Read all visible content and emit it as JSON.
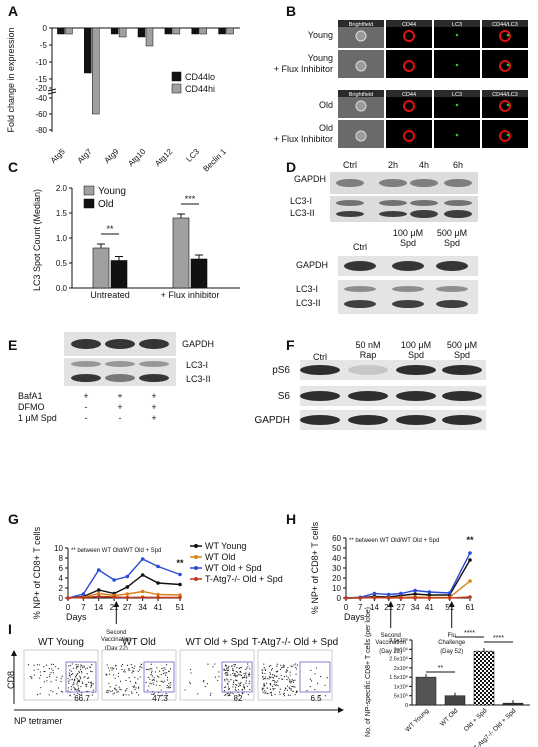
{
  "panel_labels": [
    "A",
    "B",
    "C",
    "D",
    "E",
    "F",
    "G",
    "H",
    "I"
  ],
  "colors": {
    "dark": "#111111",
    "grey": "#a0a0a0",
    "blue": "#2a4bd7",
    "orange": "#d98219",
    "red": "#c0391b",
    "gate": "#8a7fd0"
  },
  "chart_data": [
    {
      "id": "A",
      "type": "bar",
      "categories": [
        "Atg5",
        "Atg7",
        "Atg9",
        "Atg10",
        "Atg12",
        "LC3",
        "Beclin 1"
      ],
      "series": [
        {
          "name": "CD44lo",
          "values": [
            -2,
            -15,
            -2,
            -3,
            -2,
            -2,
            -2
          ]
        },
        {
          "name": "CD44hi",
          "values": [
            -2,
            -60,
            -3,
            -6,
            -2,
            -2,
            -2
          ]
        }
      ],
      "ylabel": "Fold change in expression",
      "yticks": [
        "0",
        "-5",
        "-10",
        "-15",
        "-20",
        "-40",
        "-60",
        "-80"
      ],
      "legend": "right"
    },
    {
      "id": "C",
      "type": "bar",
      "categories": [
        "Untreated",
        "+ Flux inhibitor"
      ],
      "series": [
        {
          "name": "Young",
          "values": [
            0.8,
            1.4
          ]
        },
        {
          "name": "Old",
          "values": [
            0.55,
            0.58
          ]
        }
      ],
      "ylabel": "LC3 Spot Count (Median)",
      "ylim": [
        0,
        2.0
      ],
      "yticks": [
        "0.0",
        "0.5",
        "1.0",
        "1.5",
        "2.0"
      ],
      "annotations": [
        "**",
        "***"
      ],
      "legend": "top-left"
    },
    {
      "id": "G",
      "type": "line",
      "x": [
        0,
        7,
        14,
        21,
        27,
        34,
        41,
        51
      ],
      "xticks": [
        "0",
        "7",
        "14",
        "21",
        "27",
        "34",
        "41",
        "51"
      ],
      "xlabel": "Days",
      "ylabel": "% NP+ of CD8+ T cells",
      "ylim": [
        0,
        10
      ],
      "yticks": [
        "0",
        "2",
        "4",
        "6",
        "8",
        "10"
      ],
      "series": [
        {
          "name": "WT Young",
          "values": [
            0,
            0.3,
            1.6,
            0.9,
            2.2,
            4.6,
            3.0,
            2.7
          ]
        },
        {
          "name": "WT Old",
          "values": [
            0,
            0.15,
            0.9,
            0.5,
            0.8,
            1.3,
            0.7,
            0.6
          ]
        },
        {
          "name": "WT Old + Spd",
          "values": [
            0,
            0.8,
            5.6,
            3.6,
            4.3,
            7.8,
            6.3,
            4.7
          ]
        },
        {
          "name": "T-Atg7-/- Old + Spd",
          "values": [
            0,
            0.1,
            0.3,
            0.2,
            0.1,
            0.15,
            0.1,
            0.1
          ]
        }
      ],
      "note": "** between WT Old/WT Old + Spd",
      "sig": "**",
      "event": {
        "label": "Second Vaccination",
        "sub": "(Day 22)"
      }
    },
    {
      "id": "H",
      "type": "line",
      "x": [
        0,
        7,
        14,
        21,
        27,
        34,
        41,
        51,
        61
      ],
      "xticks": [
        "0",
        "7",
        "14",
        "21",
        "27",
        "34",
        "41",
        "51",
        "61"
      ],
      "xlabel": "Days",
      "ylabel": "% NP+ of CD8+ T cells",
      "ylim": [
        0,
        60
      ],
      "yticks": [
        "0",
        "10",
        "20",
        "30",
        "40",
        "50",
        "60"
      ],
      "series": [
        {
          "name": "WT Young",
          "values": [
            0,
            0.2,
            1.5,
            1.0,
            2.5,
            4.0,
            3.0,
            3.0,
            38
          ]
        },
        {
          "name": "WT Old",
          "values": [
            0,
            0.1,
            0.5,
            0.3,
            0.6,
            1.0,
            0.6,
            0.6,
            17
          ]
        },
        {
          "name": "WT Old + Spd",
          "values": [
            0,
            0.7,
            4.5,
            3.5,
            4.5,
            7.5,
            6.0,
            5.0,
            45
          ]
        },
        {
          "name": "T-Atg7-/- Old + Spd",
          "values": [
            0,
            0.1,
            0.2,
            0.1,
            0.1,
            0.1,
            0.1,
            0.1,
            1
          ]
        }
      ],
      "note": "** between WT Old/WT Old + Spd",
      "sig": "**",
      "events": [
        {
          "label": "Second Vaccination",
          "sub": "(Day 22)"
        },
        {
          "label": "Flu Challenge",
          "sub": "(Day 52)"
        }
      ]
    },
    {
      "id": "I",
      "type": "bar",
      "categories": [
        "WT Young",
        "WT Old",
        "Old + Spd",
        "T-Atg7-/- Old + Spd"
      ],
      "values": [
        1.5,
        0.5,
        2.9,
        0.1
      ],
      "ylabel": "No. of NP-specific CD8+ T cells (per lobe)",
      "ylim": [
        0,
        3.5
      ],
      "yticks": [
        "0",
        "5x10⁵",
        "1x10⁶",
        "1.5x10⁶",
        "2x10⁶",
        "2.5x10⁶",
        "3x10⁶",
        "3.5x10⁶"
      ],
      "annotations": [
        "**",
        "****",
        "****"
      ]
    }
  ],
  "panelB": {
    "columns": [
      "Brightfield",
      "CD44",
      "LC3",
      "CD44/LC3"
    ],
    "rows": [
      "Young",
      "Young\n+ Flux Inhibitor",
      "Old",
      "Old\n+ Flux Inhibitor"
    ]
  },
  "panelD": {
    "top_lanes": [
      "Ctrl",
      "2h",
      "4h",
      "6h"
    ],
    "bottom_lanes": [
      "Ctrl",
      "100 μM\nSpd",
      "500 μM\nSpd"
    ],
    "bands": [
      "GAPDH",
      "LC3-I",
      "LC3-II"
    ]
  },
  "panelE": {
    "bands": [
      "GAPDH",
      "LC3-I",
      "LC3-II"
    ],
    "treatments": [
      {
        "label": "BafA1",
        "marks": [
          "+",
          "+",
          "+"
        ]
      },
      {
        "label": "DFMO",
        "marks": [
          "-",
          "+",
          "+"
        ]
      },
      {
        "label": "1 μM Spd",
        "marks": [
          "-",
          "-",
          "+"
        ]
      }
    ]
  },
  "panelF": {
    "lanes": [
      "Ctrl",
      "50 nM\nRap",
      "100 μM\nSpd",
      "500 μM\nSpd"
    ],
    "bands": [
      "pS6",
      "S6",
      "GAPDH"
    ]
  },
  "panelI_flow": {
    "plots": [
      {
        "title": "WT Young",
        "value": "66.7"
      },
      {
        "title": "WT Old",
        "value": "47.3"
      },
      {
        "title": "WT Old + Spd",
        "value": "82"
      },
      {
        "title": "T-Atg7-/- Old + Spd",
        "value": "6.5"
      }
    ],
    "ylabel": "CD8",
    "xlabel": "NP tetramer"
  }
}
